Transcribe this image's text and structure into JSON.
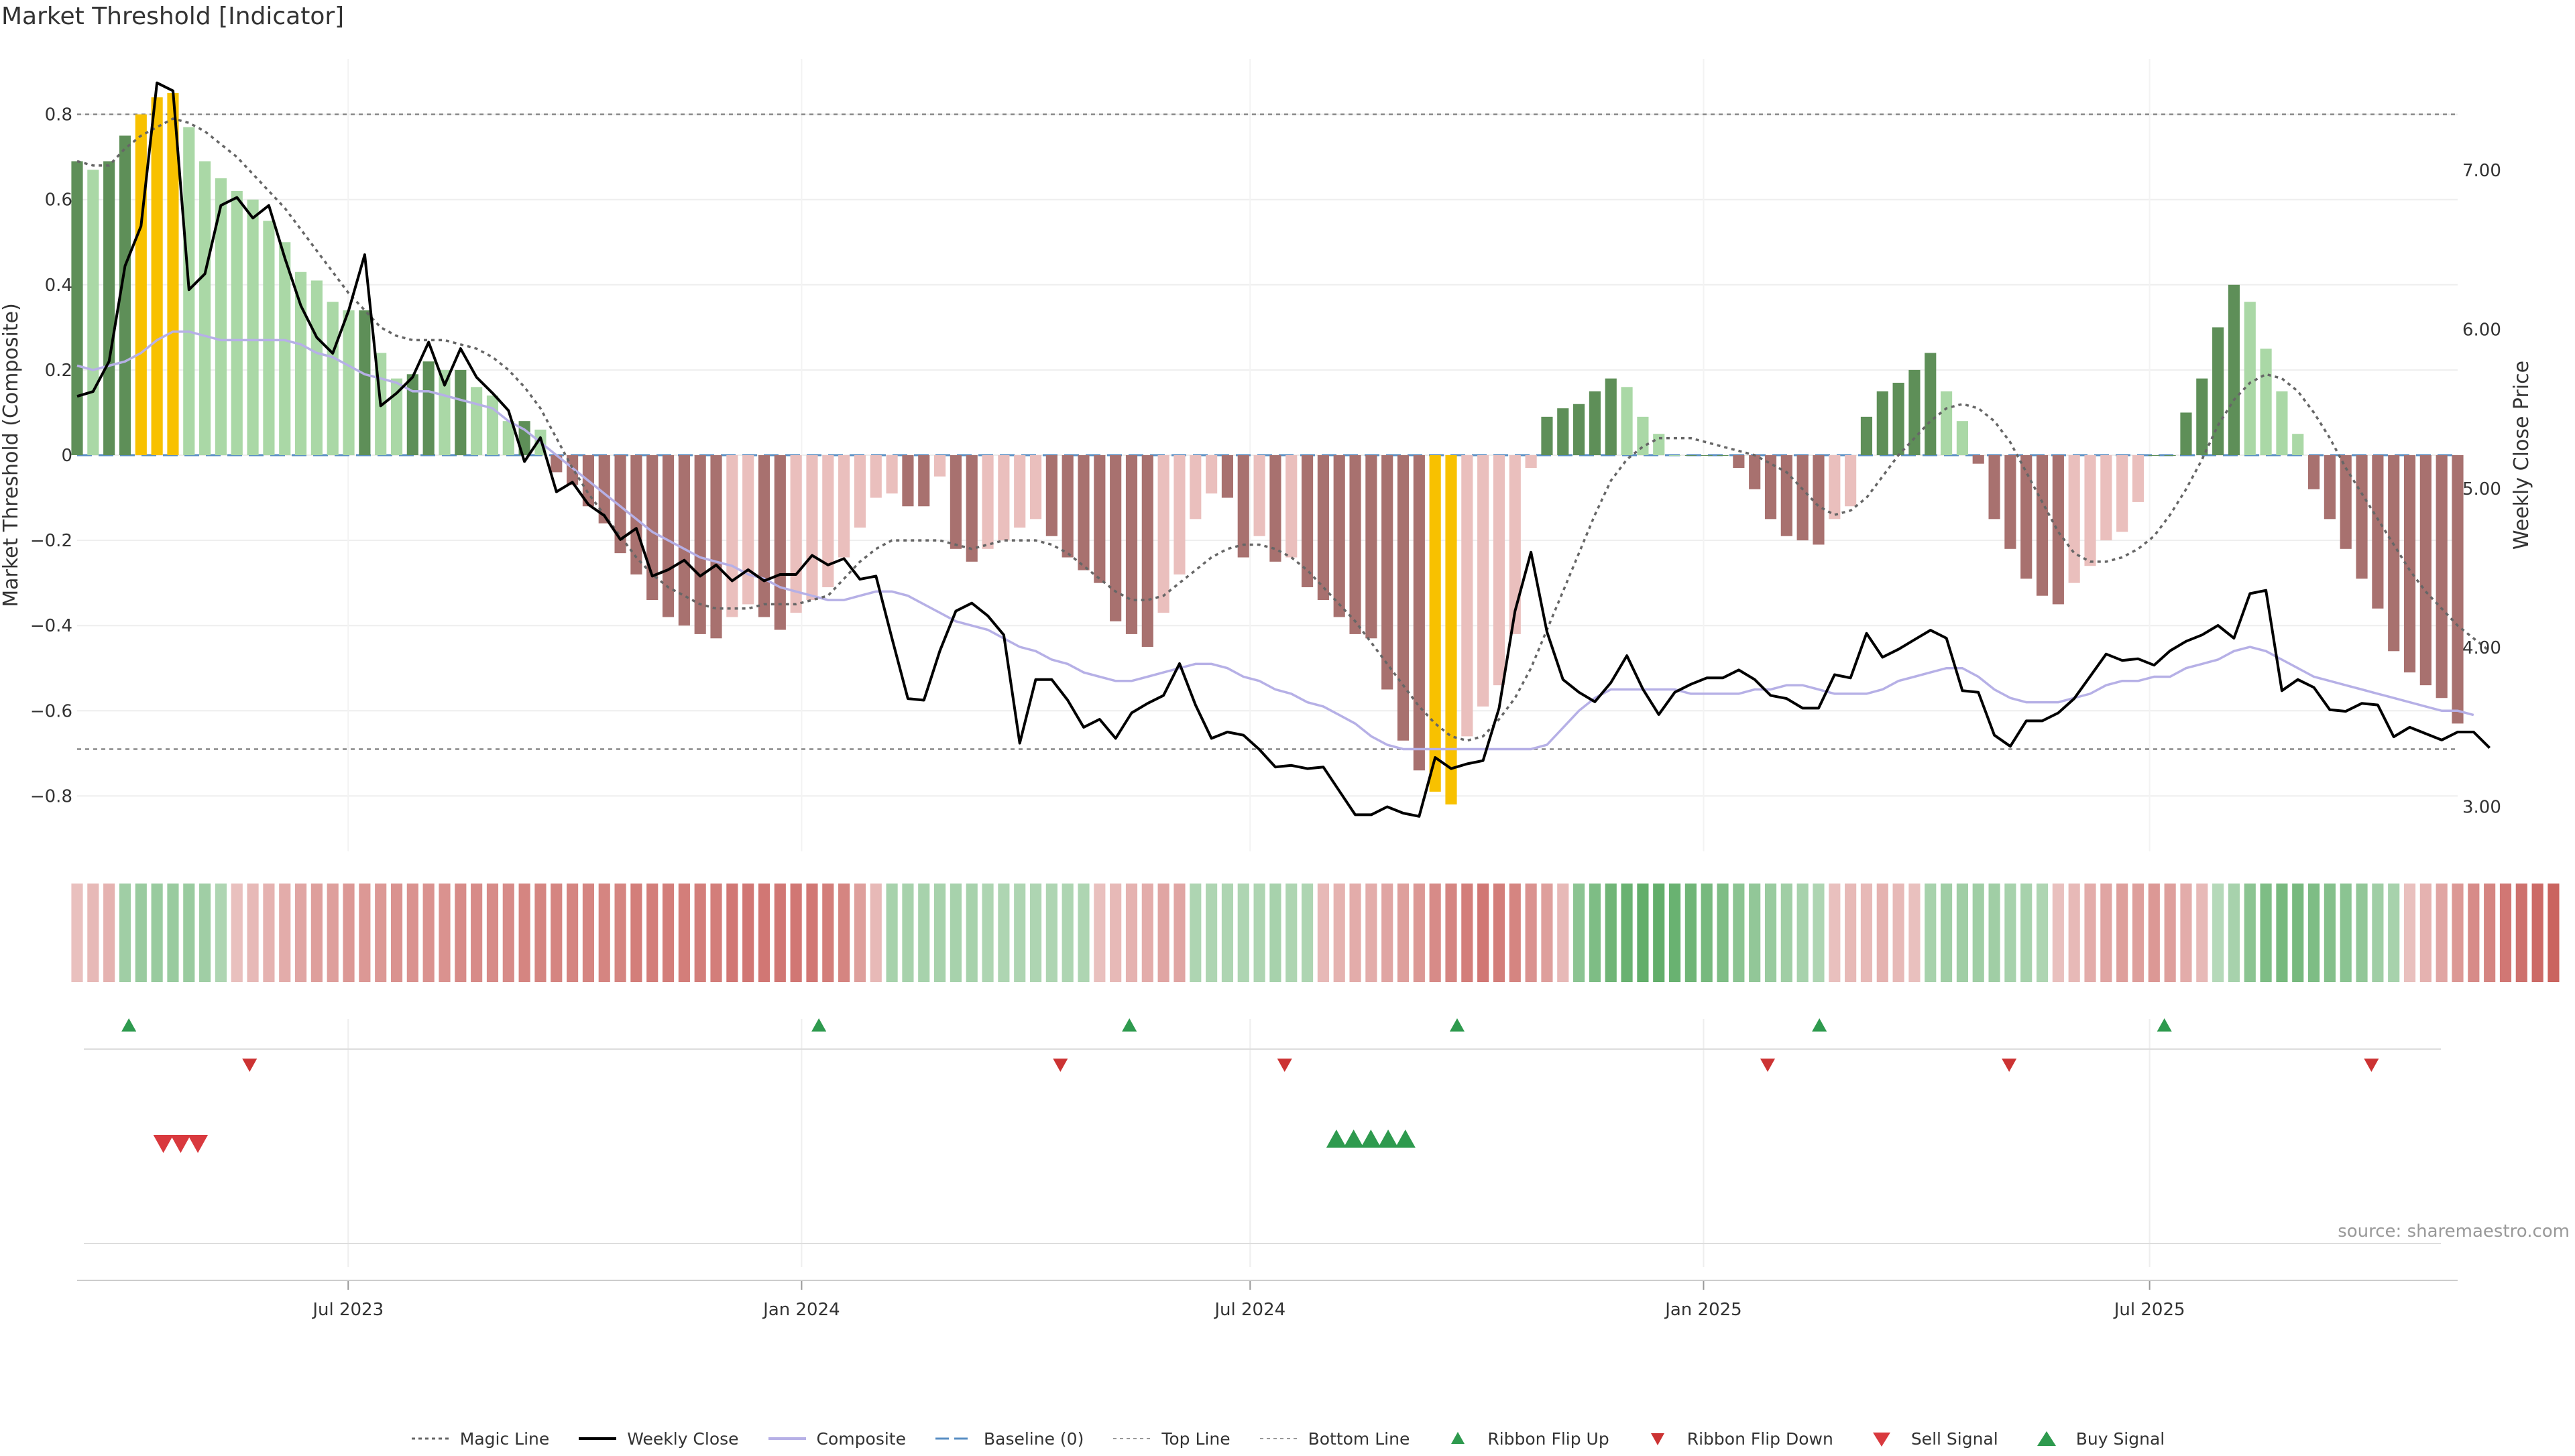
{
  "title": "Market Threshold [Indicator]",
  "source": "source: sharemaestro.com",
  "colors": {
    "strong_green": "#5e8f58",
    "light_green": "#aad8a6",
    "strong_red": "#a8716f",
    "light_red": "#eabfbd",
    "extreme": "#f8c100",
    "weekly_close": "#000000",
    "magic": "#666666",
    "composite": "#b6b0e6",
    "baseline": "#5a8fc4"
  },
  "chart_data": {
    "type": "bar",
    "title": "Market Threshold [Indicator]",
    "ylabel": "Market Threshold (Composite)",
    "y2label": "Weekly Close Price",
    "ylim": [
      -0.93,
      0.93
    ],
    "y2lim": [
      2.72,
      7.7
    ],
    "yticks": [
      0.8,
      0.6,
      0.4,
      0.2,
      0,
      -0.2,
      -0.4,
      -0.6,
      -0.8
    ],
    "ytick_labels": [
      "0.8",
      "0.6",
      "0.4",
      "0.2",
      "0",
      "−0.2",
      "−0.4",
      "−0.6",
      "−0.8"
    ],
    "y2ticks": [
      7,
      6,
      5,
      4,
      3
    ],
    "y2tick_labels": [
      "7.00",
      "6.00",
      "5.00",
      "4.00",
      "3.00"
    ],
    "top_line": 0.8,
    "bottom_line": -0.69,
    "x_start": "2023-03-13",
    "x_end": "2025-11-03",
    "x_step_days": 7,
    "xticks": [
      {
        "date": "2023-07-01",
        "label": "Jul 2023"
      },
      {
        "date": "2024-01-01",
        "label": "Jan 2024"
      },
      {
        "date": "2024-07-01",
        "label": "Jul 2024"
      },
      {
        "date": "2025-01-01",
        "label": "Jan 2025"
      },
      {
        "date": "2025-07-01",
        "label": "Jul 2025"
      }
    ],
    "composite_bars": [
      0.69,
      0.67,
      0.69,
      0.75,
      0.8,
      0.84,
      0.85,
      0.77,
      0.69,
      0.65,
      0.62,
      0.6,
      0.55,
      0.5,
      0.43,
      0.41,
      0.36,
      0.34,
      0.34,
      0.24,
      0.18,
      0.19,
      0.22,
      0.2,
      0.2,
      0.16,
      0.14,
      0.08,
      0.08,
      0.06,
      -0.04,
      -0.07,
      -0.12,
      -0.16,
      -0.23,
      -0.28,
      -0.34,
      -0.38,
      -0.4,
      -0.42,
      -0.43,
      -0.38,
      -0.35,
      -0.38,
      -0.41,
      -0.37,
      -0.34,
      -0.31,
      -0.24,
      -0.17,
      -0.1,
      -0.09,
      -0.12,
      -0.12,
      -0.05,
      -0.22,
      -0.25,
      -0.22,
      -0.2,
      -0.17,
      -0.15,
      -0.19,
      -0.24,
      -0.27,
      -0.3,
      -0.39,
      -0.42,
      -0.45,
      -0.37,
      -0.28,
      -0.15,
      -0.09,
      -0.1,
      -0.24,
      -0.19,
      -0.25,
      -0.24,
      -0.31,
      -0.34,
      -0.38,
      -0.42,
      -0.43,
      -0.55,
      -0.67,
      -0.74,
      -0.79,
      -0.82,
      -0.66,
      -0.59,
      -0.54,
      -0.42,
      -0.03,
      0.09,
      0.11,
      0.12,
      0.15,
      0.18,
      0.16,
      0.09,
      0.05,
      0,
      0,
      0,
      0,
      -0.03,
      -0.08,
      -0.15,
      -0.19,
      -0.2,
      -0.21,
      -0.15,
      -0.12,
      0.09,
      0.15,
      0.17,
      0.2,
      0.24,
      0.15,
      0.08,
      -0.02,
      -0.15,
      -0.22,
      -0.29,
      -0.33,
      -0.35,
      -0.3,
      -0.26,
      -0.2,
      -0.18,
      -0.11,
      0,
      0,
      0.1,
      0.18,
      0.3,
      0.4,
      0.36,
      0.25,
      0.15,
      0.05,
      -0.08,
      -0.15,
      -0.22,
      -0.29,
      -0.36,
      -0.46,
      -0.51,
      -0.54,
      -0.57,
      -0.63
    ],
    "magic_line": [
      0.69,
      0.68,
      0.68,
      0.72,
      0.75,
      0.77,
      0.79,
      0.78,
      0.76,
      0.73,
      0.7,
      0.66,
      0.62,
      0.58,
      0.53,
      0.48,
      0.43,
      0.38,
      0.34,
      0.3,
      0.28,
      0.27,
      0.27,
      0.27,
      0.26,
      0.25,
      0.23,
      0.2,
      0.16,
      0.11,
      0.04,
      -0.03,
      -0.09,
      -0.14,
      -0.19,
      -0.24,
      -0.28,
      -0.31,
      -0.33,
      -0.35,
      -0.36,
      -0.36,
      -0.36,
      -0.35,
      -0.35,
      -0.35,
      -0.34,
      -0.33,
      -0.29,
      -0.25,
      -0.22,
      -0.2,
      -0.2,
      -0.2,
      -0.2,
      -0.21,
      -0.22,
      -0.21,
      -0.2,
      -0.2,
      -0.2,
      -0.21,
      -0.23,
      -0.26,
      -0.29,
      -0.32,
      -0.34,
      -0.34,
      -0.33,
      -0.3,
      -0.27,
      -0.24,
      -0.22,
      -0.21,
      -0.21,
      -0.22,
      -0.24,
      -0.27,
      -0.31,
      -0.35,
      -0.39,
      -0.44,
      -0.49,
      -0.54,
      -0.59,
      -0.63,
      -0.66,
      -0.67,
      -0.66,
      -0.62,
      -0.57,
      -0.5,
      -0.41,
      -0.32,
      -0.23,
      -0.14,
      -0.06,
      -0.01,
      0.02,
      0.04,
      0.04,
      0.04,
      0.03,
      0.02,
      0.01,
      0,
      -0.02,
      -0.04,
      -0.08,
      -0.12,
      -0.14,
      -0.13,
      -0.1,
      -0.05,
      0,
      0.04,
      0.08,
      0.11,
      0.12,
      0.11,
      0.08,
      0.03,
      -0.04,
      -0.11,
      -0.18,
      -0.23,
      -0.25,
      -0.25,
      -0.24,
      -0.22,
      -0.19,
      -0.14,
      -0.08,
      -0.01,
      0.07,
      0.13,
      0.17,
      0.19,
      0.18,
      0.15,
      0.1,
      0.04,
      -0.03,
      -0.09,
      -0.15,
      -0.21,
      -0.27,
      -0.32,
      -0.36,
      -0.4,
      -0.43,
      -0.46
    ],
    "composite_line": [
      0.21,
      0.2,
      0.21,
      0.22,
      0.24,
      0.27,
      0.29,
      0.29,
      0.28,
      0.27,
      0.27,
      0.27,
      0.27,
      0.27,
      0.26,
      0.24,
      0.23,
      0.21,
      0.19,
      0.18,
      0.17,
      0.15,
      0.15,
      0.14,
      0.13,
      0.12,
      0.11,
      0.08,
      0.06,
      0.03,
      0,
      -0.03,
      -0.06,
      -0.09,
      -0.12,
      -0.15,
      -0.18,
      -0.2,
      -0.22,
      -0.24,
      -0.25,
      -0.26,
      -0.28,
      -0.29,
      -0.31,
      -0.32,
      -0.33,
      -0.34,
      -0.34,
      -0.33,
      -0.32,
      -0.32,
      -0.33,
      -0.35,
      -0.37,
      -0.39,
      -0.4,
      -0.41,
      -0.43,
      -0.45,
      -0.46,
      -0.48,
      -0.49,
      -0.51,
      -0.52,
      -0.53,
      -0.53,
      -0.52,
      -0.51,
      -0.5,
      -0.49,
      -0.49,
      -0.5,
      -0.52,
      -0.53,
      -0.55,
      -0.56,
      -0.58,
      -0.59,
      -0.61,
      -0.63,
      -0.66,
      -0.68,
      -0.69,
      -0.69,
      -0.69,
      -0.69,
      -0.69,
      -0.69,
      -0.69,
      -0.69,
      -0.69,
      -0.68,
      -0.64,
      -0.6,
      -0.57,
      -0.55,
      -0.55,
      -0.55,
      -0.55,
      -0.55,
      -0.56,
      -0.56,
      -0.56,
      -0.56,
      -0.55,
      -0.55,
      -0.54,
      -0.54,
      -0.55,
      -0.56,
      -0.56,
      -0.56,
      -0.55,
      -0.53,
      -0.52,
      -0.51,
      -0.5,
      -0.5,
      -0.52,
      -0.55,
      -0.57,
      -0.58,
      -0.58,
      -0.58,
      -0.57,
      -0.56,
      -0.54,
      -0.53,
      -0.53,
      -0.52,
      -0.52,
      -0.5,
      -0.49,
      -0.48,
      -0.46,
      -0.45,
      -0.46,
      -0.48,
      -0.5,
      -0.52,
      -0.53,
      -0.54,
      -0.55,
      -0.56,
      -0.57,
      -0.58,
      -0.59,
      -0.6,
      -0.6,
      -0.61
    ],
    "weekly_close": [
      5.58,
      5.61,
      5.8,
      6.4,
      6.65,
      7.55,
      7.5,
      6.25,
      6.35,
      6.78,
      6.83,
      6.7,
      6.78,
      6.45,
      6.15,
      5.95,
      5.85,
      6.12,
      6.47,
      5.52,
      5.6,
      5.7,
      5.92,
      5.65,
      5.88,
      5.7,
      5.6,
      5.49,
      5.17,
      5.32,
      4.98,
      5.04,
      4.9,
      4.83,
      4.68,
      4.75,
      4.45,
      4.49,
      4.55,
      4.45,
      4.52,
      4.42,
      4.49,
      4.42,
      4.46,
      4.46,
      4.58,
      4.52,
      4.56,
      4.43,
      4.45,
      4.06,
      3.68,
      3.67,
      3.98,
      4.23,
      4.28,
      4.2,
      4.08,
      3.4,
      3.8,
      3.8,
      3.67,
      3.5,
      3.55,
      3.43,
      3.59,
      3.65,
      3.7,
      3.9,
      3.64,
      3.43,
      3.47,
      3.45,
      3.36,
      3.25,
      3.26,
      3.24,
      3.25,
      3.1,
      2.95,
      2.95,
      3,
      2.96,
      2.94,
      3.31,
      3.24,
      3.27,
      3.29,
      3.62,
      4.23,
      4.6,
      4.1,
      3.8,
      3.72,
      3.66,
      3.78,
      3.95,
      3.74,
      3.58,
      3.72,
      3.77,
      3.81,
      3.81,
      3.86,
      3.8,
      3.7,
      3.68,
      3.62,
      3.62,
      3.83,
      3.81,
      4.09,
      3.94,
      3.99,
      4.05,
      4.11,
      4.06,
      3.73,
      3.72,
      3.45,
      3.38,
      3.54,
      3.54,
      3.59,
      3.68,
      3.82,
      3.96,
      3.92,
      3.93,
      3.89,
      3.98,
      4.04,
      4.08,
      4.14,
      4.06,
      4.34,
      4.36,
      3.73,
      3.8,
      3.75,
      3.61,
      3.6,
      3.65,
      3.64,
      3.44,
      3.5,
      3.46,
      3.42,
      3.47,
      3.47,
      3.37
    ],
    "ribbon": [
      -0.15,
      -0.2,
      -0.25,
      0.35,
      0.4,
      0.4,
      0.4,
      0.4,
      0.35,
      0.25,
      -0.15,
      -0.2,
      -0.25,
      -0.3,
      -0.35,
      -0.4,
      -0.4,
      -0.45,
      -0.45,
      -0.45,
      -0.5,
      -0.5,
      -0.5,
      -0.5,
      -0.55,
      -0.55,
      -0.55,
      -0.55,
      -0.6,
      -0.6,
      -0.6,
      -0.6,
      -0.6,
      -0.6,
      -0.6,
      -0.65,
      -0.65,
      -0.65,
      -0.65,
      -0.65,
      -0.65,
      -0.7,
      -0.7,
      -0.7,
      -0.7,
      -0.7,
      -0.7,
      -0.65,
      -0.6,
      -0.4,
      -0.2,
      0.3,
      0.3,
      0.3,
      0.3,
      0.3,
      0.3,
      0.25,
      0.25,
      0.25,
      0.25,
      0.25,
      0.25,
      0.25,
      -0.15,
      -0.2,
      -0.25,
      -0.3,
      -0.35,
      -0.35,
      0.25,
      0.25,
      0.25,
      0.25,
      0.25,
      0.3,
      0.25,
      0.25,
      -0.2,
      -0.25,
      -0.3,
      -0.3,
      -0.35,
      -0.4,
      -0.45,
      -0.55,
      -0.6,
      -0.65,
      -0.7,
      -0.65,
      -0.6,
      -0.5,
      -0.4,
      -0.2,
      0.5,
      0.6,
      0.7,
      0.75,
      0.8,
      0.8,
      0.75,
      0.7,
      0.65,
      0.6,
      0.5,
      0.45,
      0.4,
      0.35,
      0.3,
      0.25,
      -0.15,
      -0.2,
      -0.2,
      -0.25,
      -0.2,
      -0.15,
      0.3,
      0.35,
      0.35,
      0.35,
      0.35,
      0.3,
      0.3,
      0.25,
      -0.15,
      -0.2,
      -0.3,
      -0.35,
      -0.4,
      -0.4,
      -0.45,
      -0.4,
      -0.3,
      -0.2,
      0.2,
      0.3,
      0.5,
      0.6,
      0.65,
      0.65,
      0.6,
      0.55,
      0.5,
      0.45,
      0.35,
      0.3,
      -0.15,
      -0.25,
      -0.35,
      -0.45,
      -0.55,
      -0.6,
      -0.7,
      -0.75,
      -0.8,
      -0.85
    ],
    "ribbon_flip_up": [
      "2023-04-03",
      "2024-01-08",
      "2024-05-13",
      "2024-09-23",
      "2025-02-17",
      "2025-07-07"
    ],
    "ribbon_flip_down": [
      "2023-05-22",
      "2024-04-15",
      "2024-07-15",
      "2025-01-27",
      "2025-05-05",
      "2025-09-29"
    ],
    "sell_signal": [
      "2023-04-17",
      "2023-04-24",
      "2023-05-01"
    ],
    "buy_signal": [
      "2024-08-05",
      "2024-08-12",
      "2024-08-19",
      "2024-08-26",
      "2024-09-02"
    ],
    "legend": [
      {
        "key": "magic",
        "label": "Magic Line"
      },
      {
        "key": "close",
        "label": "Weekly Close"
      },
      {
        "key": "composite",
        "label": "Composite"
      },
      {
        "key": "baseline",
        "label": "Baseline (0)"
      },
      {
        "key": "top",
        "label": "Top Line"
      },
      {
        "key": "bottom",
        "label": "Bottom Line"
      },
      {
        "key": "flipup",
        "label": "Ribbon Flip Up"
      },
      {
        "key": "flipdown",
        "label": "Ribbon Flip Down"
      },
      {
        "key": "sell",
        "label": "Sell Signal"
      },
      {
        "key": "buy",
        "label": "Buy Signal"
      }
    ]
  }
}
